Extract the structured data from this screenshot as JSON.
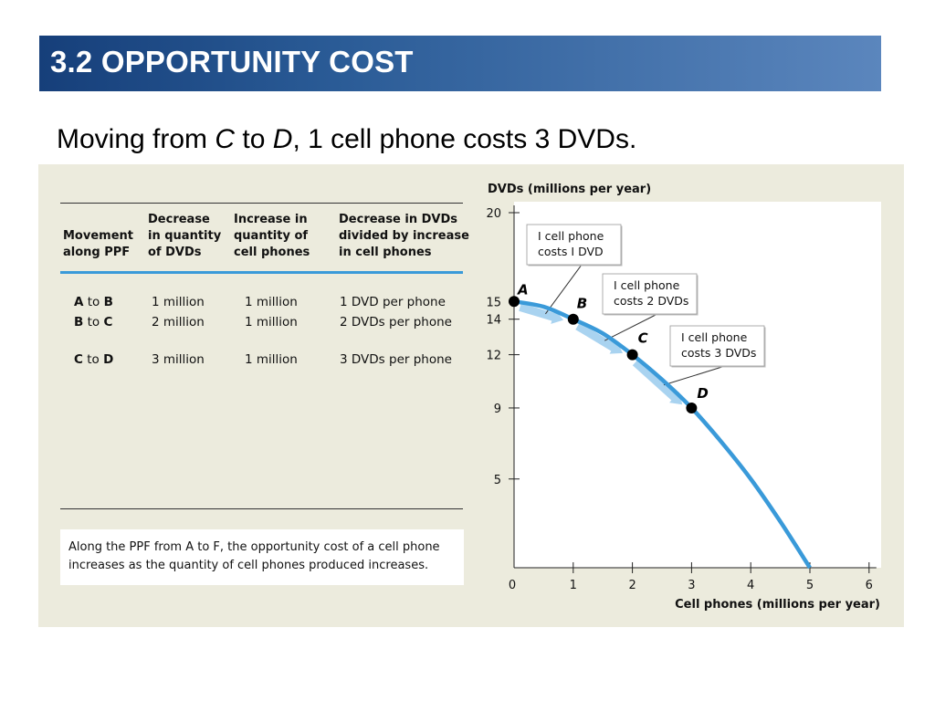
{
  "slide": {
    "title": "3.2 OPPORTUNITY COST",
    "subtitle_parts": [
      "Moving from ",
      "C",
      " to ",
      "D",
      ", 1 cell phone costs 3 DVDs."
    ]
  },
  "table": {
    "headers": [
      "Movement\nalong PPF",
      "Decrease\nin quantity\nof DVDs",
      "Increase in\nquantity of\ncell phones",
      "Decrease in DVDs\ndivided by increase\nin cell phones"
    ],
    "rows": [
      {
        "from": "A",
        "to_word": "to",
        "to": "B",
        "decrease": "1 million",
        "increase": "1 million",
        "ratio": "1 DVD per phone"
      },
      {
        "from": "B",
        "to_word": "to",
        "to": "C",
        "decrease": "2 million",
        "increase": "1 million",
        "ratio": "2 DVDs per phone"
      },
      {
        "from": "C",
        "to_word": "to",
        "to": "D",
        "decrease": "3 million",
        "increase": "1 million",
        "ratio": "3 DVDs per phone"
      }
    ]
  },
  "note_lines": [
    "Along the PPF from A to F, the opportunity cost of a cell phone",
    "increases as the quantity of cell phones produced increases."
  ],
  "colors": {
    "title_bar_dark": "#163f7a",
    "title_bar_light": "#5b86bd",
    "panel_bg": "#ecebdd",
    "curve": "#3a9ad9",
    "arrow": "#a9d3f0",
    "table_rule_blue": "#3a9ad9"
  },
  "chart_data": {
    "type": "line",
    "ylabel": "DVDs (millions per year)",
    "xlabel": "Cell phones (millions per year)",
    "xlim": [
      0,
      6
    ],
    "ylim": [
      0,
      20
    ],
    "x_ticks": [
      0,
      1,
      2,
      3,
      4,
      5,
      6
    ],
    "y_ticks": [
      5,
      9,
      12,
      14,
      15,
      20
    ],
    "series": [
      {
        "x": [
          0,
          0.5,
          1,
          1.5,
          2,
          2.5,
          3,
          3.5,
          4,
          4.5,
          5
        ],
        "y": [
          15,
          14.7,
          14,
          13.2,
          12,
          10.6,
          9,
          7.1,
          5,
          2.6,
          0
        ]
      }
    ],
    "points": [
      {
        "label": "A",
        "x": 0,
        "y": 15
      },
      {
        "label": "B",
        "x": 1,
        "y": 14
      },
      {
        "label": "C",
        "x": 2,
        "y": 12
      },
      {
        "label": "D",
        "x": 3,
        "y": 9
      }
    ],
    "annotations": [
      {
        "text": "I cell phone\ncosts I DVD",
        "x": 0.5,
        "y": 14.5
      },
      {
        "text": "I cell phone\ncosts 2 DVDs",
        "x": 1.5,
        "y": 13
      },
      {
        "text": "I cell phone\ncosts 3 DVDs",
        "x": 2.5,
        "y": 10.5
      }
    ],
    "grid": false
  }
}
